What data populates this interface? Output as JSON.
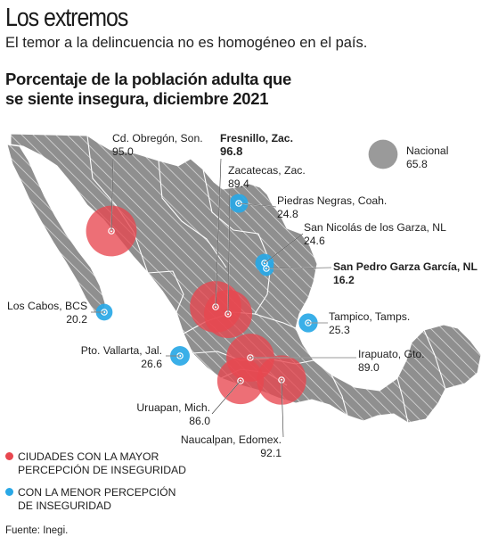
{
  "header": {
    "title": "Los extremos",
    "subtitle": "El temor a la delincuencia no es homogéneo en el país.",
    "chart_title_line1": "Porcentaje de la población adulta que",
    "chart_title_line2": "se siente insegura, diciembre 2021"
  },
  "colors": {
    "high": "#e8474f",
    "low": "#29a8e6",
    "land": "#8f8f8f",
    "hatch": "#ffffff"
  },
  "national": {
    "name": "Nacional",
    "value": "65.8"
  },
  "cities": [
    {
      "id": "obregon",
      "name": "Cd. Obregón, Son.",
      "value": "95.0",
      "group": "high",
      "bold": false
    },
    {
      "id": "fresnillo",
      "name": "Fresnillo, Zac.",
      "value": "96.8",
      "group": "high",
      "bold": true
    },
    {
      "id": "zacatecas",
      "name": "Zacatecas, Zac.",
      "value": "89.4",
      "group": "high",
      "bold": false
    },
    {
      "id": "piedras",
      "name": "Piedras Negras, Coah.",
      "value": "24.8",
      "group": "low",
      "bold": false
    },
    {
      "id": "sannicolas",
      "name": "San Nicolás de los Garza, NL",
      "value": "24.6",
      "group": "low",
      "bold": false
    },
    {
      "id": "sanpedro",
      "name": "San Pedro Garza García, NL",
      "value": "16.2",
      "group": "low",
      "bold": true
    },
    {
      "id": "loscabos",
      "name": "Los Cabos, BCS",
      "value": "20.2",
      "group": "low",
      "bold": false
    },
    {
      "id": "tampico",
      "name": "Tampico, Tamps.",
      "value": "25.3",
      "group": "low",
      "bold": false
    },
    {
      "id": "vallarta",
      "name": "Pto. Vallarta, Jal.",
      "value": "26.6",
      "group": "low",
      "bold": false
    },
    {
      "id": "irapuato",
      "name": "Irapuato, Gto.",
      "value": "89.0",
      "group": "high",
      "bold": false
    },
    {
      "id": "uruapan",
      "name": "Uruapan, Mich.",
      "value": "86.0",
      "group": "high",
      "bold": false
    },
    {
      "id": "naucalpan",
      "name": "Naucalpan, Edomex.",
      "value": "92.1",
      "group": "high",
      "bold": false
    }
  ],
  "legend": {
    "high_line1": "CIUDADES CON LA MAYOR",
    "high_line2": "PERCEPCIÓN DE INSEGURIDAD",
    "low_line1": "CON LA MENOR PERCEPCIÓN",
    "low_line2": "DE INSEGURIDAD"
  },
  "source": "Fuente: Inegi."
}
